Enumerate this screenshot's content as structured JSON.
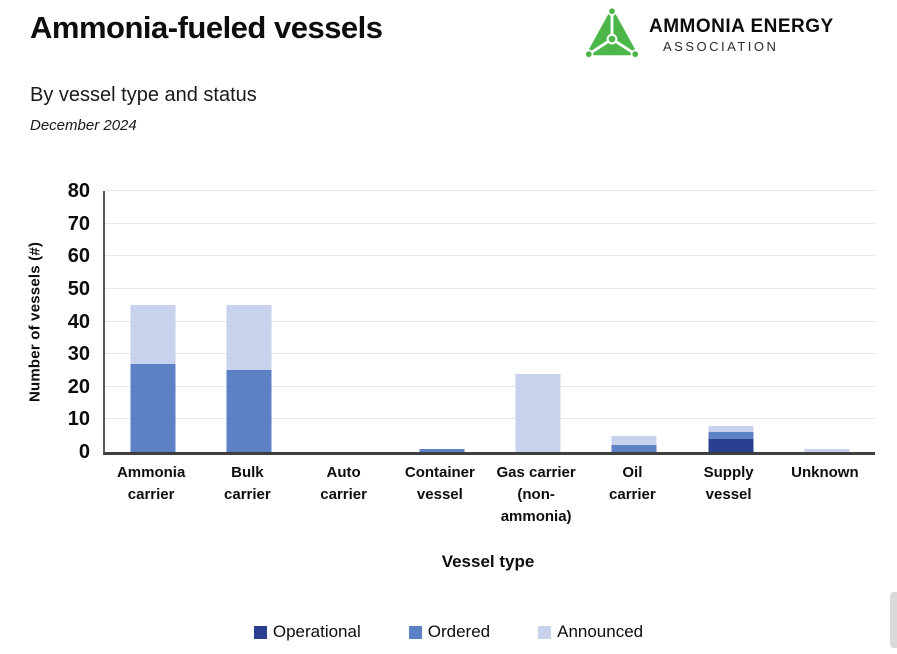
{
  "header": {
    "title": "Ammonia-fueled vessels",
    "subtitle": "By vessel type and status",
    "date": "December 2024"
  },
  "logo": {
    "name": "ammonia-energy-association-logo",
    "line1": "AMMONIA ENERGY",
    "line2": "ASSOCIATION",
    "mark_color": "#4DB648"
  },
  "chart_data": {
    "type": "bar",
    "stacked": true,
    "title": "Ammonia-fueled vessels",
    "subtitle": "By vessel type and status",
    "xlabel": "Vessel type",
    "ylabel": "Number of vessels (#)",
    "ylim": [
      0,
      80
    ],
    "yticks": [
      0,
      10,
      20,
      30,
      40,
      50,
      60,
      70,
      80
    ],
    "grid": true,
    "legend_position": "bottom",
    "categories": [
      "Ammonia carrier",
      "Bulk carrier",
      "Auto carrier",
      "Container vessel",
      "Gas carrier (non-ammonia)",
      "Oil carrier",
      "Supply vessel",
      "Unknown"
    ],
    "category_label_lines": [
      [
        "Ammonia",
        "carrier"
      ],
      [
        "Bulk",
        "carrier"
      ],
      [
        "Auto",
        "carrier"
      ],
      [
        "Container",
        "vessel"
      ],
      [
        "Gas carrier",
        "(non-",
        "ammonia)"
      ],
      [
        "Oil",
        "carrier"
      ],
      [
        "Supply",
        "vessel"
      ],
      [
        "Unknown"
      ]
    ],
    "series": [
      {
        "name": "Operational",
        "color": "#2B3F90",
        "values": [
          0,
          0,
          0,
          0,
          0,
          0,
          4,
          0
        ]
      },
      {
        "name": "Ordered",
        "color": "#5C81C4",
        "values": [
          27,
          25,
          0,
          1,
          0,
          2,
          2,
          0
        ]
      },
      {
        "name": "Announced",
        "color": "#C8D2EC",
        "values": [
          18,
          20,
          0,
          0,
          24,
          3,
          2,
          1
        ]
      }
    ],
    "totals": [
      45,
      45,
      0,
      1,
      24,
      5,
      8,
      1
    ],
    "colors": {
      "gridline": "#E7E7E7",
      "axis": "#595959",
      "baseline": "#3F3F3F"
    }
  }
}
